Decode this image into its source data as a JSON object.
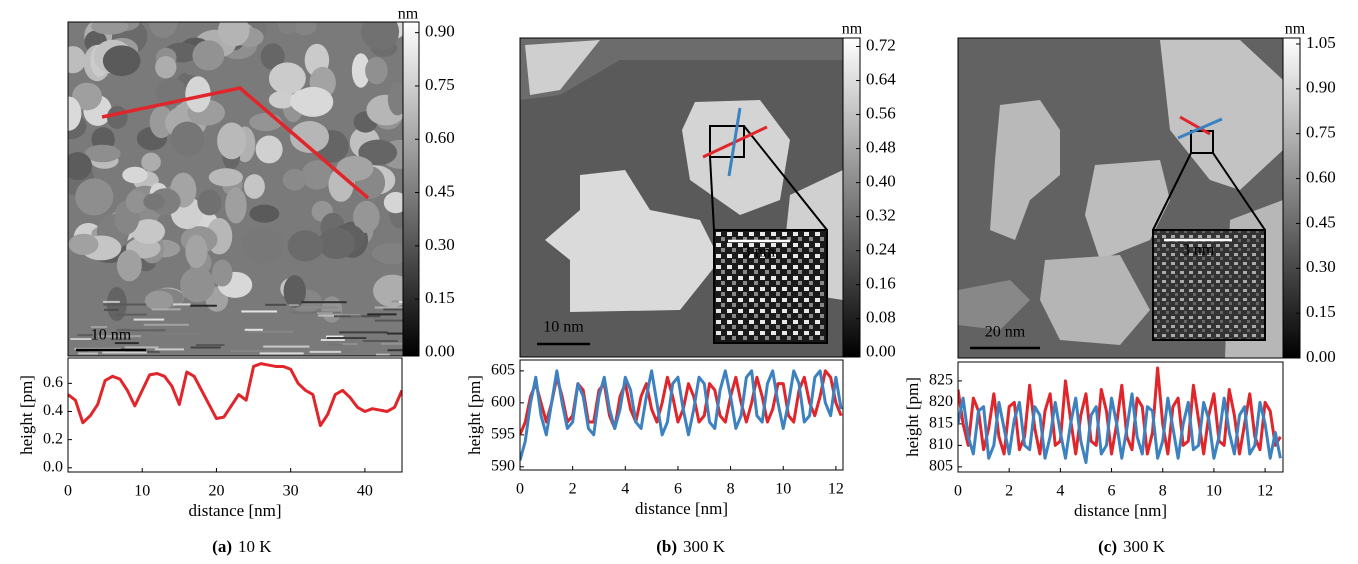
{
  "panels": [
    {
      "label": "(a)",
      "caption": "10 K",
      "scale_bar": "10 nm",
      "colorbar": {
        "unit": "nm",
        "lim": [
          -0.01,
          0.93
        ],
        "ticks": [
          {
            "value": 0,
            "label": "0.00"
          },
          {
            "value": 0.15,
            "label": "0.15"
          },
          {
            "value": 0.3,
            "label": "0.30"
          },
          {
            "value": 0.45,
            "label": "0.45"
          },
          {
            "value": 0.6,
            "label": "0.60"
          },
          {
            "value": 0.75,
            "label": "0.75"
          },
          {
            "value": 0.9,
            "label": "0.90"
          }
        ]
      }
    },
    {
      "label": "(b)",
      "caption": "300 K",
      "scale_bar": "10 nm",
      "inset_scale_bar": "3 nm",
      "colorbar": {
        "unit": "nm",
        "lim": [
          -0.01,
          0.74
        ],
        "ticks": [
          {
            "value": 0,
            "label": "0.00"
          },
          {
            "value": 0.08,
            "label": "0.08"
          },
          {
            "value": 0.16,
            "label": "0.16"
          },
          {
            "value": 0.24,
            "label": "0.24"
          },
          {
            "value": 0.32,
            "label": "0.32"
          },
          {
            "value": 0.4,
            "label": "0.40"
          },
          {
            "value": 0.48,
            "label": "0.48"
          },
          {
            "value": 0.56,
            "label": "0.56"
          },
          {
            "value": 0.64,
            "label": "0.64"
          },
          {
            "value": 0.72,
            "label": "0.72"
          }
        ]
      }
    },
    {
      "label": "(c)",
      "caption": "300 K",
      "scale_bar": "20 nm",
      "inset_scale_bar": "3 nm",
      "colorbar": {
        "unit": "nm",
        "lim": [
          0,
          1.07
        ],
        "ticks": [
          {
            "value": 0,
            "label": "0.00"
          },
          {
            "value": 0.15,
            "label": "0.15"
          },
          {
            "value": 0.3,
            "label": "0.30"
          },
          {
            "value": 0.45,
            "label": "0.45"
          },
          {
            "value": 0.6,
            "label": "0.60"
          },
          {
            "value": 0.75,
            "label": "0.75"
          },
          {
            "value": 0.9,
            "label": "0.90"
          },
          {
            "value": 1.05,
            "label": "1.05"
          }
        ]
      }
    }
  ],
  "chart_data": [
    {
      "type": "line",
      "x_label": "distance [nm]",
      "y_label": "height [pm]",
      "x": [
        0,
        1,
        2,
        3,
        4,
        5,
        6,
        7,
        8,
        9,
        10,
        11,
        12,
        13,
        14,
        15,
        16,
        17,
        18,
        19,
        20,
        21,
        22,
        23,
        24,
        25,
        26,
        27,
        28,
        29,
        30,
        31,
        32,
        33,
        34,
        35,
        36,
        37,
        38,
        39,
        40,
        41,
        42,
        43,
        44,
        45
      ],
      "series": [
        {
          "color": "#e0262b",
          "values": [
            0.52,
            0.48,
            0.32,
            0.37,
            0.45,
            0.62,
            0.65,
            0.63,
            0.55,
            0.44,
            0.55,
            0.66,
            0.67,
            0.65,
            0.58,
            0.45,
            0.68,
            0.65,
            0.55,
            0.45,
            0.35,
            0.36,
            0.44,
            0.52,
            0.48,
            0.72,
            0.74,
            0.73,
            0.72,
            0.72,
            0.7,
            0.6,
            0.55,
            0.52,
            0.3,
            0.38,
            0.52,
            0.55,
            0.5,
            0.43,
            0.4,
            0.42,
            0.41,
            0.4,
            0.43,
            0.55
          ]
        }
      ],
      "xlim": [
        0,
        45
      ],
      "ylim": [
        -0.03,
        0.78
      ],
      "xticks": [
        0,
        10,
        20,
        30,
        40
      ],
      "yticks": [
        {
          "value": 0,
          "label": "0.0"
        },
        {
          "value": 0.2,
          "label": "0.2"
        },
        {
          "value": 0.4,
          "label": "0.4"
        },
        {
          "value": 0.6,
          "label": "0.6"
        }
      ]
    },
    {
      "type": "line",
      "x_label": "distance [nm]",
      "y_label": "height [pm]",
      "x": [
        0,
        0.2,
        0.4,
        0.6,
        0.8,
        1,
        1.2,
        1.4,
        1.6,
        1.8,
        2,
        2.2,
        2.4,
        2.6,
        2.8,
        3,
        3.2,
        3.4,
        3.6,
        3.8,
        4,
        4.2,
        4.4,
        4.6,
        4.8,
        5,
        5.2,
        5.4,
        5.6,
        5.8,
        6,
        6.2,
        6.4,
        6.6,
        6.8,
        7,
        7.2,
        7.4,
        7.6,
        7.8,
        8,
        8.2,
        8.4,
        8.6,
        8.8,
        9,
        9.2,
        9.4,
        9.6,
        9.8,
        10,
        10.2,
        10.4,
        10.6,
        10.8,
        11,
        11.2,
        11.4,
        11.6,
        11.8,
        12,
        12.2
      ],
      "series": [
        {
          "color": "#e0262b",
          "values": [
            595,
            597,
            601,
            603,
            600,
            597,
            600,
            604,
            601,
            597,
            598,
            603,
            602,
            597,
            597,
            602,
            603,
            598,
            596,
            601,
            603,
            599,
            597,
            601,
            603,
            599,
            597,
            600,
            604,
            601,
            597,
            599,
            603,
            601,
            597,
            598,
            603,
            602,
            598,
            597,
            601,
            604,
            600,
            597,
            600,
            604,
            601,
            597,
            599,
            603,
            603,
            598,
            597,
            602,
            604,
            600,
            598,
            601,
            605,
            604,
            600,
            598
          ]
        },
        {
          "color": "#3c82c0",
          "values": [
            591,
            594,
            600,
            604,
            598,
            595,
            600,
            605,
            600,
            596,
            597,
            603,
            601,
            596,
            595,
            601,
            604,
            599,
            596,
            599,
            604,
            602,
            597,
            596,
            601,
            605,
            600,
            595,
            597,
            603,
            604,
            599,
            595,
            599,
            604,
            603,
            597,
            596,
            602,
            605,
            601,
            596,
            598,
            604,
            605,
            598,
            597,
            603,
            605,
            600,
            596,
            600,
            605,
            603,
            597,
            598,
            604,
            605,
            600,
            598,
            604,
            599
          ]
        }
      ],
      "xlim": [
        0,
        12.27
      ],
      "ylim": [
        589.5,
        606.7
      ],
      "xticks": [
        0,
        2,
        4,
        6,
        8,
        10,
        12
      ],
      "yticks": [
        590,
        595,
        600,
        605
      ]
    },
    {
      "type": "line",
      "x_label": "distance [nm]",
      "y_label": "height [pm]",
      "x": [
        0,
        0.2,
        0.4,
        0.6,
        0.8,
        1,
        1.2,
        1.4,
        1.6,
        1.8,
        2,
        2.2,
        2.4,
        2.6,
        2.8,
        3,
        3.2,
        3.4,
        3.6,
        3.8,
        4,
        4.2,
        4.4,
        4.6,
        4.8,
        5,
        5.2,
        5.4,
        5.6,
        5.8,
        6,
        6.2,
        6.4,
        6.6,
        6.8,
        7,
        7.2,
        7.4,
        7.6,
        7.8,
        8,
        8.2,
        8.4,
        8.6,
        8.8,
        9,
        9.2,
        9.4,
        9.6,
        9.8,
        10,
        10.2,
        10.4,
        10.6,
        10.8,
        11,
        11.2,
        11.4,
        11.6,
        11.8,
        12,
        12.2,
        12.4,
        12.6
      ],
      "series": [
        {
          "color": "#e0262b",
          "values": [
            823,
            815,
            810,
            821,
            818,
            809,
            814,
            822,
            812,
            808,
            819,
            820,
            809,
            812,
            824,
            814,
            808,
            818,
            822,
            810,
            811,
            825,
            816,
            808,
            817,
            822,
            811,
            810,
            823,
            818,
            808,
            815,
            824,
            812,
            809,
            821,
            819,
            808,
            813,
            828,
            815,
            808,
            819,
            821,
            810,
            811,
            824,
            816,
            808,
            817,
            822,
            811,
            810,
            823,
            817,
            808,
            815,
            822,
            812,
            809,
            820,
            818,
            810,
            812
          ]
        },
        {
          "color": "#3c82c0",
          "values": [
            815,
            821,
            812,
            808,
            818,
            819,
            807,
            810,
            820,
            814,
            808,
            816,
            820,
            810,
            809,
            819,
            817,
            807,
            812,
            820,
            813,
            807,
            815,
            821,
            811,
            806,
            817,
            819,
            808,
            810,
            821,
            815,
            807,
            814,
            822,
            812,
            808,
            819,
            818,
            807,
            811,
            821,
            814,
            807,
            815,
            820,
            809,
            810,
            820,
            816,
            807,
            812,
            821,
            813,
            808,
            817,
            819,
            808,
            810,
            820,
            815,
            807,
            813,
            807
          ]
        }
      ],
      "xlim": [
        0,
        12.7
      ],
      "ylim": [
        803.8,
        829.4
      ],
      "xticks": [
        0,
        2,
        4,
        6,
        8,
        10,
        12
      ],
      "yticks": [
        805,
        810,
        815,
        820,
        825
      ]
    }
  ]
}
